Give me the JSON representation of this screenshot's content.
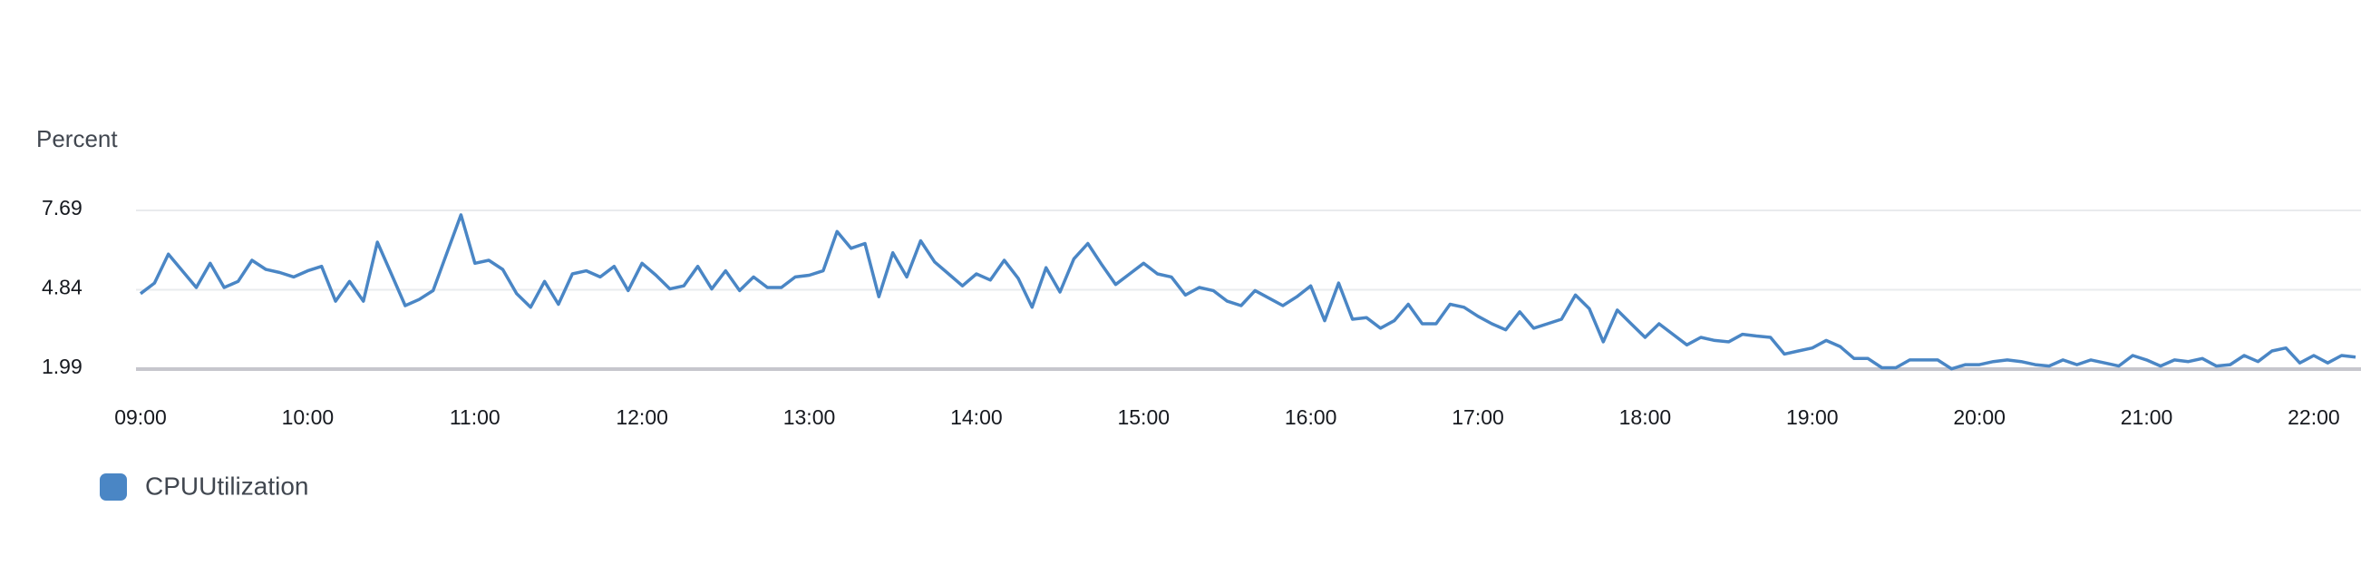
{
  "chart_data": {
    "type": "line",
    "y_label": "Percent",
    "x": [
      "09:00",
      "09:05",
      "09:10",
      "09:15",
      "09:20",
      "09:25",
      "09:30",
      "09:35",
      "09:40",
      "09:45",
      "09:50",
      "09:55",
      "10:00",
      "10:05",
      "10:10",
      "10:15",
      "10:20",
      "10:25",
      "10:30",
      "10:35",
      "10:40",
      "10:45",
      "10:50",
      "10:55",
      "11:00",
      "11:05",
      "11:10",
      "11:15",
      "11:20",
      "11:25",
      "11:30",
      "11:35",
      "11:40",
      "11:45",
      "11:50",
      "11:55",
      "12:00",
      "12:05",
      "12:10",
      "12:15",
      "12:20",
      "12:25",
      "12:30",
      "12:35",
      "12:40",
      "12:45",
      "12:50",
      "12:55",
      "13:00",
      "13:05",
      "13:10",
      "13:15",
      "13:20",
      "13:25",
      "13:30",
      "13:35",
      "13:40",
      "13:45",
      "13:50",
      "13:55",
      "14:00",
      "14:05",
      "14:10",
      "14:15",
      "14:20",
      "14:25",
      "14:30",
      "14:35",
      "14:40",
      "14:45",
      "14:50",
      "14:55",
      "15:00",
      "15:05",
      "15:10",
      "15:15",
      "15:20",
      "15:25",
      "15:30",
      "15:35",
      "15:40",
      "15:45",
      "15:50",
      "15:55",
      "16:00",
      "16:05",
      "16:10",
      "16:15",
      "16:20",
      "16:25",
      "16:30",
      "16:35",
      "16:40",
      "16:45",
      "16:50",
      "16:55",
      "17:00",
      "17:05",
      "17:10",
      "17:15",
      "17:20",
      "17:25",
      "17:30",
      "17:35",
      "17:40",
      "17:45",
      "17:50",
      "17:55",
      "18:00",
      "18:05",
      "18:10",
      "18:15",
      "18:20",
      "18:25",
      "18:30",
      "18:35",
      "18:40",
      "18:45",
      "18:50",
      "18:55",
      "19:00",
      "19:05",
      "19:10",
      "19:15",
      "19:20",
      "19:25",
      "19:30",
      "19:35",
      "19:40",
      "19:45",
      "19:50",
      "19:55",
      "20:00",
      "20:05",
      "20:10",
      "20:15",
      "20:20",
      "20:25",
      "20:30",
      "20:35",
      "20:40",
      "20:45",
      "20:50",
      "20:55",
      "21:00",
      "21:05",
      "21:10",
      "21:15",
      "21:20",
      "21:25",
      "21:30",
      "21:35",
      "21:40",
      "21:45",
      "21:50",
      "21:55",
      "22:00",
      "22:05",
      "22:10",
      "22:15"
    ],
    "series": [
      {
        "name": "CPUUtilization",
        "color": "#4a86c5",
        "values": [
          4.7,
          5.08,
          6.12,
          5.52,
          4.92,
          5.79,
          4.92,
          5.14,
          5.9,
          5.57,
          5.46,
          5.3,
          5.52,
          5.68,
          4.43,
          5.14,
          4.43,
          6.55,
          5.41,
          4.27,
          4.49,
          4.81,
          6.17,
          7.53,
          5.79,
          5.9,
          5.57,
          4.7,
          4.21,
          5.14,
          4.32,
          5.41,
          5.52,
          5.3,
          5.68,
          4.81,
          5.79,
          5.36,
          4.87,
          4.98,
          5.68,
          4.87,
          5.52,
          4.81,
          5.3,
          4.92,
          4.92,
          5.3,
          5.36,
          5.52,
          6.93,
          6.33,
          6.5,
          4.59,
          6.17,
          5.3,
          6.6,
          5.84,
          5.41,
          4.98,
          5.41,
          5.19,
          5.9,
          5.25,
          4.21,
          5.63,
          4.76,
          5.95,
          6.5,
          5.74,
          5.03,
          5.41,
          5.79,
          5.41,
          5.3,
          4.65,
          4.92,
          4.81,
          4.43,
          4.27,
          4.81,
          4.54,
          4.27,
          4.59,
          4.98,
          3.73,
          5.08,
          3.78,
          3.84,
          3.46,
          3.73,
          4.32,
          3.62,
          3.62,
          4.32,
          4.21,
          3.89,
          3.62,
          3.4,
          4.05,
          3.46,
          3.62,
          3.78,
          4.65,
          4.16,
          2.97,
          4.11,
          3.62,
          3.13,
          3.62,
          3.24,
          2.86,
          3.13,
          3.02,
          2.97,
          3.24,
          3.18,
          3.13,
          2.53,
          2.64,
          2.75,
          3.02,
          2.8,
          2.37,
          2.37,
          2.04,
          2.04,
          2.32,
          2.32,
          2.32,
          2.0,
          2.15,
          2.15,
          2.26,
          2.32,
          2.26,
          2.15,
          2.1,
          2.32,
          2.15,
          2.32,
          2.21,
          2.1,
          2.48,
          2.32,
          2.1,
          2.32,
          2.26,
          2.37,
          2.1,
          2.15,
          2.48,
          2.26,
          2.64,
          2.75,
          2.21,
          2.48,
          2.21,
          2.48,
          2.42
        ]
      }
    ],
    "xlim": [
      "09:00",
      "22:15"
    ],
    "xticks": [
      "09:00",
      "10:00",
      "11:00",
      "12:00",
      "13:00",
      "14:00",
      "15:00",
      "16:00",
      "17:00",
      "18:00",
      "19:00",
      "20:00",
      "21:00",
      "22:00"
    ],
    "ylim": [
      1.99,
      7.69
    ],
    "yticks": [
      1.99,
      4.84,
      7.69
    ],
    "grid": true,
    "legend": "bottom-left"
  }
}
